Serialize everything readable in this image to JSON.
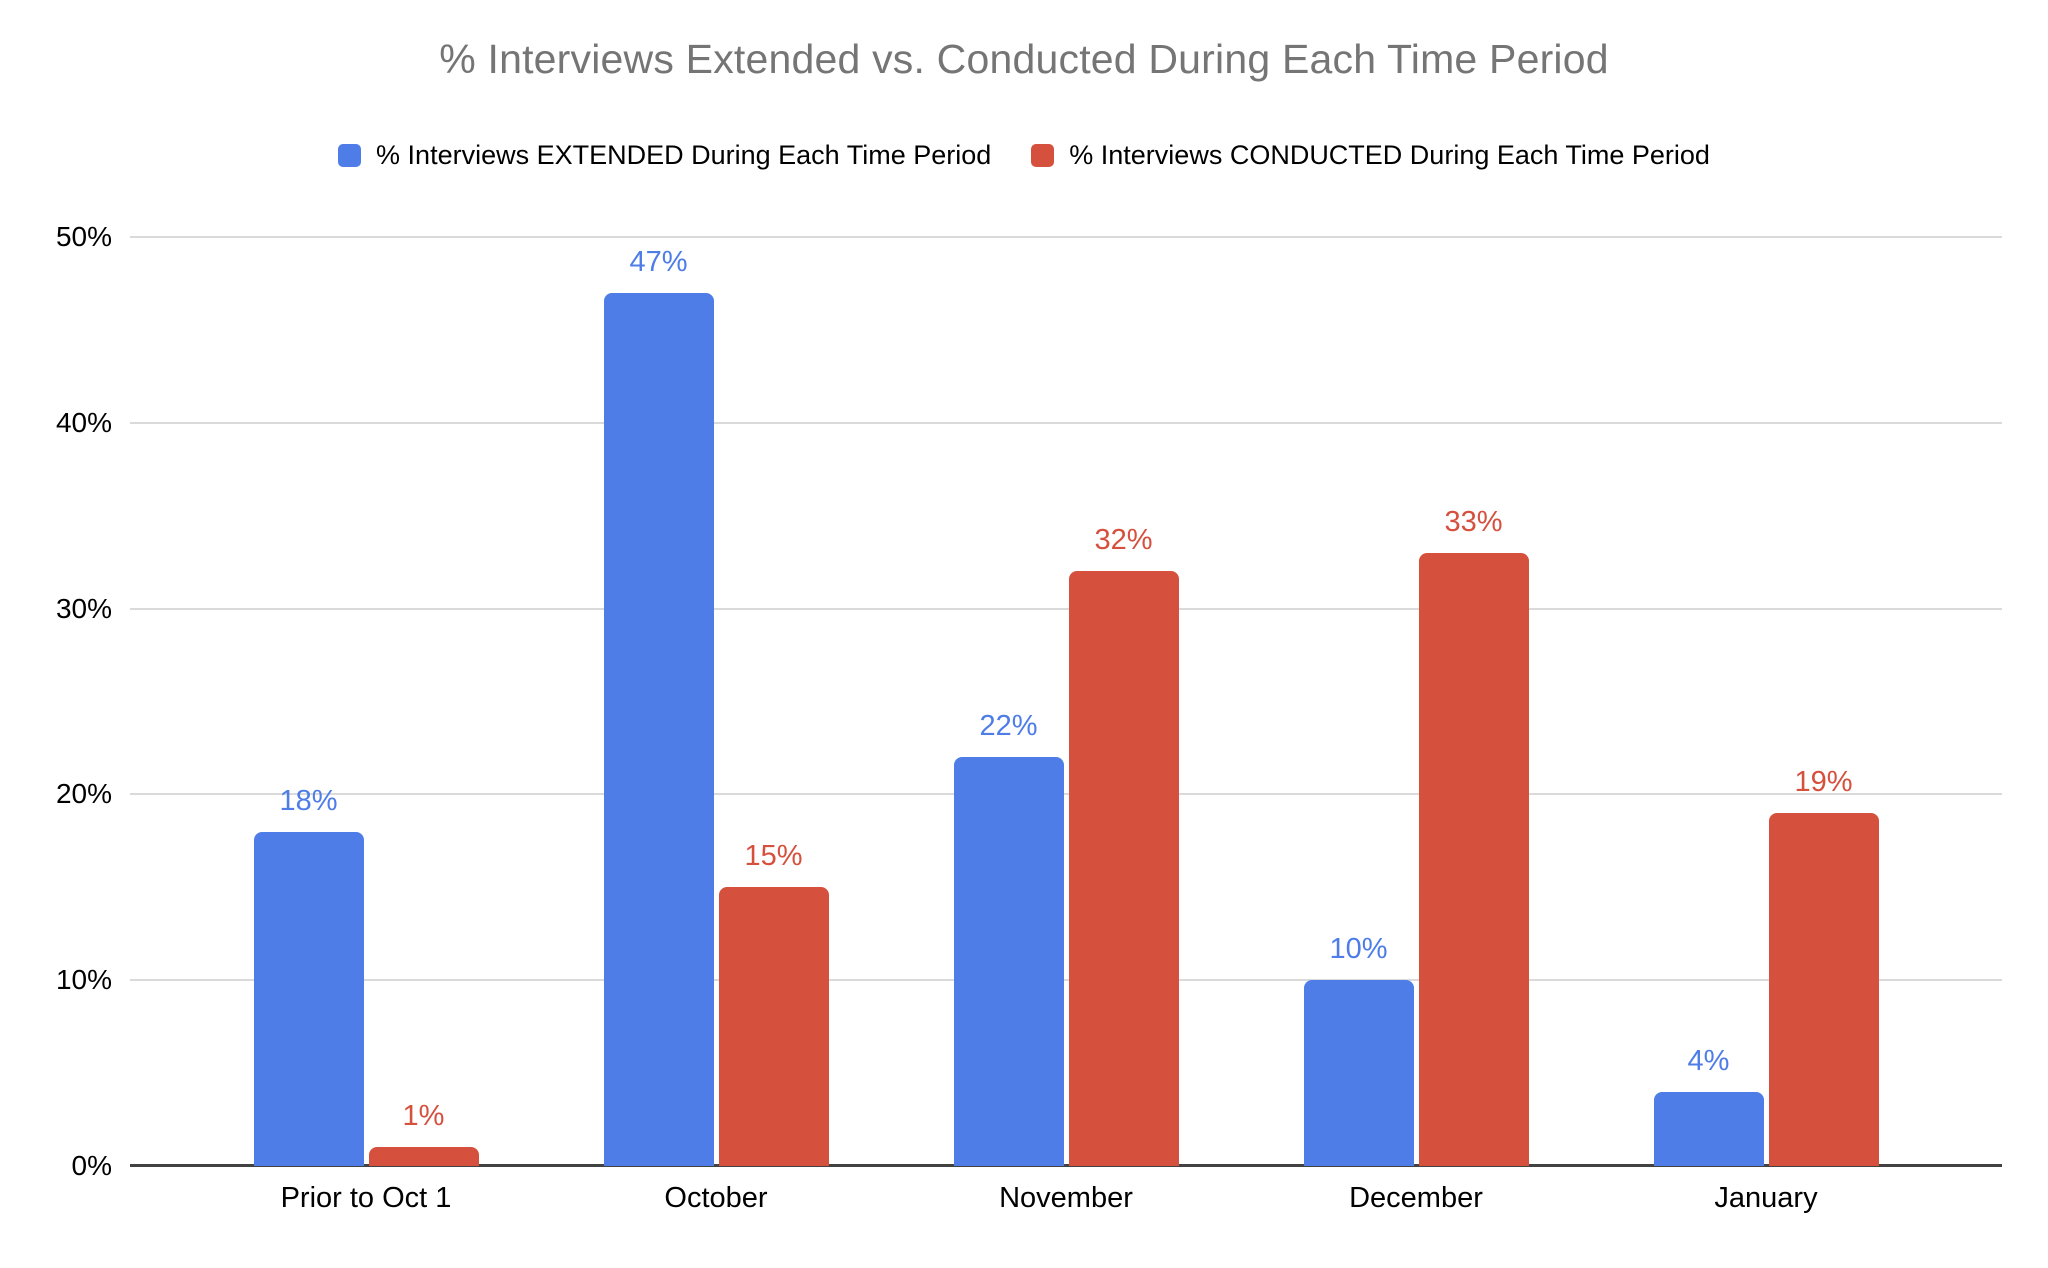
{
  "chart_data": {
    "type": "bar",
    "title": "% Interviews Extended vs. Conducted During Each Time Period",
    "categories": [
      "Prior to Oct 1",
      "October",
      "November",
      "December",
      "January"
    ],
    "series": [
      {
        "name": "% Interviews EXTENDED During Each Time Period",
        "key": "extended",
        "color": "#4E7DE8",
        "values": [
          18,
          47,
          22,
          10,
          4
        ],
        "labels": [
          "18%",
          "47%",
          "22%",
          "10%",
          "4%"
        ]
      },
      {
        "name": "% Interviews CONDUCTED During Each Time Period",
        "key": "conducted",
        "color": "#D6503E",
        "values": [
          1,
          15,
          32,
          33,
          19
        ],
        "labels": [
          "1%",
          "15%",
          "32%",
          "33%",
          "19%"
        ]
      }
    ],
    "y_axis": {
      "ticks": [
        "0%",
        "10%",
        "20%",
        "30%",
        "40%",
        "50%"
      ],
      "min": 0,
      "max": 50
    },
    "grid": true,
    "legend_position": "top",
    "colors": {
      "title_text": "#757575",
      "axis_text": "#000000",
      "gridline": "#DADADA",
      "baseline": "#424242",
      "background": "#FFFFFF"
    }
  }
}
